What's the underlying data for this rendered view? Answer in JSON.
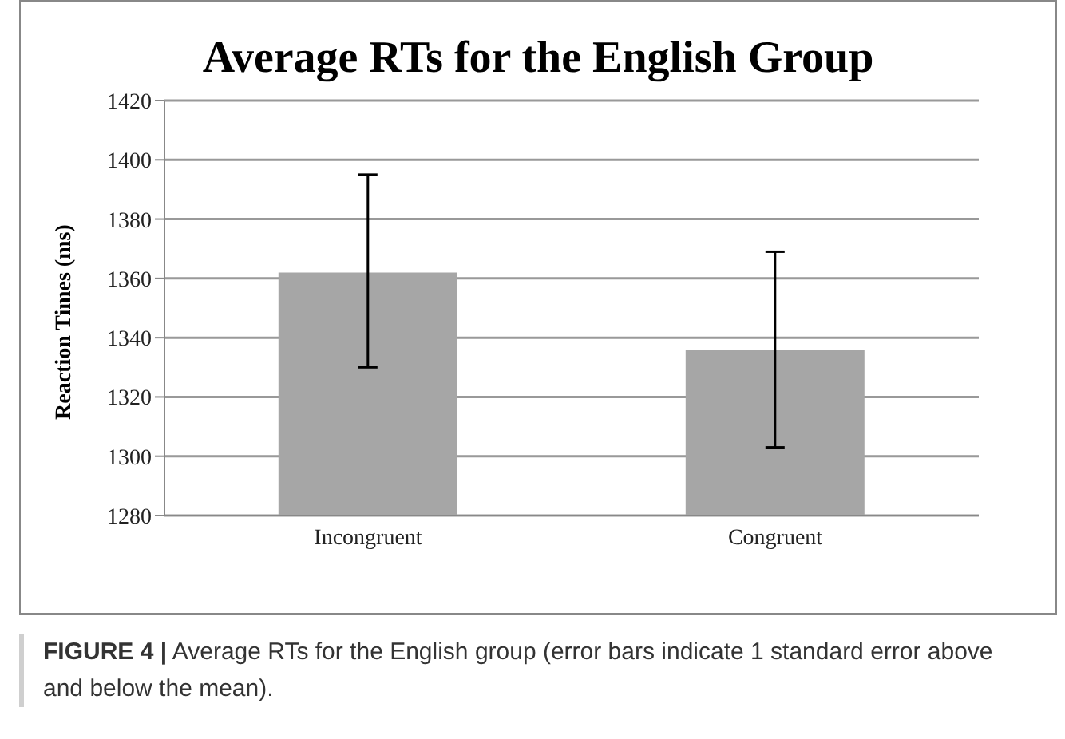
{
  "chart_data": {
    "type": "bar",
    "title": "Average RTs for the English Group",
    "ylabel": "Reaction Times (ms)",
    "categories": [
      "Incongruent",
      "Congruent"
    ],
    "values": [
      1362,
      1336
    ],
    "errors": [
      [
        1330,
        1395
      ],
      [
        1303,
        1369
      ]
    ],
    "color": "#a6a6a6",
    "ylim": [
      1280,
      1420
    ],
    "yticks": [
      1280,
      1300,
      1320,
      1340,
      1360,
      1380,
      1400,
      1420
    ],
    "grid": "y",
    "legend": false,
    "annotations": [
      "FIGURE 4 | Average RTs for the English group (error bars indicate 1 standard error above and below the mean)."
    ]
  }
}
